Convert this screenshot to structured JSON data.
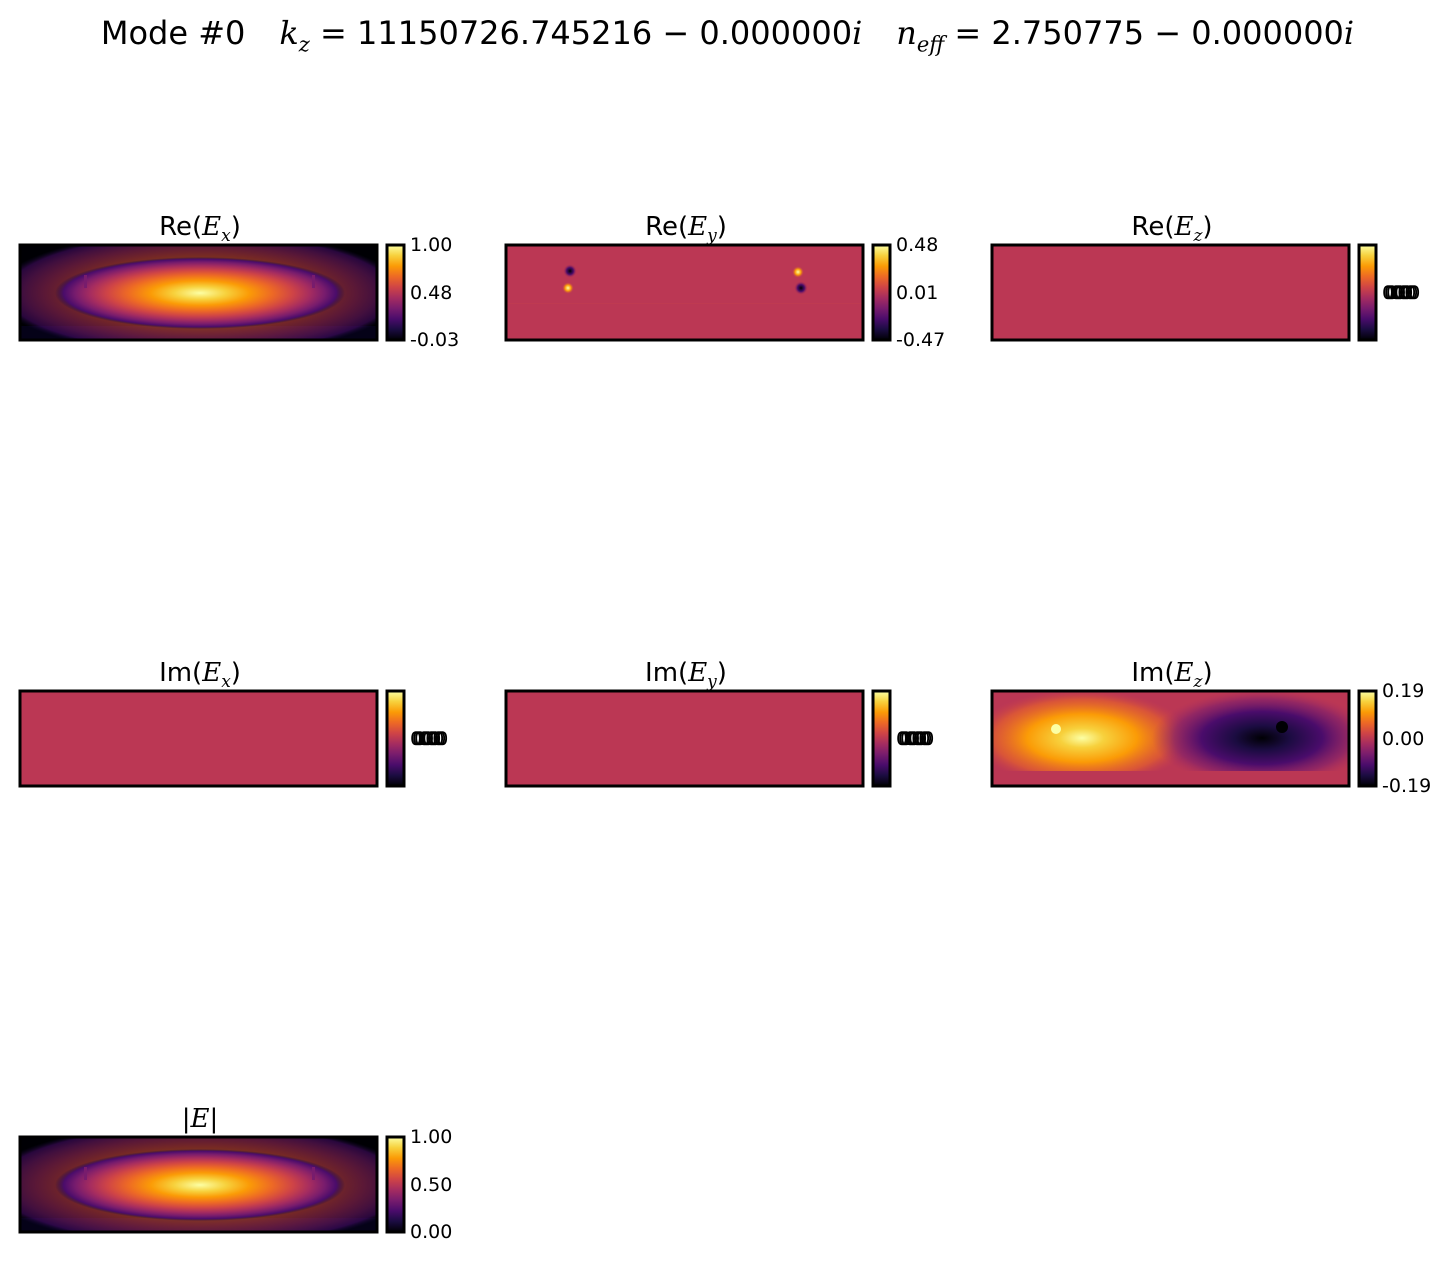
{
  "title": {
    "mode": "Mode #0",
    "kz_value": "11150726.745216 − 0.000000",
    "neff_value": "2.750775 − 0.000000"
  },
  "chart_data": [
    {
      "type": "heatmap",
      "title": {
        "prefix": "Re(",
        "sym": "E",
        "sub": "x",
        "suffix": ")"
      },
      "colormap": "inferno",
      "colorbar_ticks": [
        "1.00",
        "0.48",
        "-0.03"
      ]
    },
    {
      "type": "heatmap",
      "title": {
        "prefix": "Re(",
        "sym": "E",
        "sub": "y",
        "suffix": ")"
      },
      "colormap": "inferno",
      "colorbar_ticks": [
        "0.48",
        "0.01",
        "-0.47"
      ]
    },
    {
      "type": "heatmap",
      "title": {
        "prefix": "Re(",
        "sym": "E",
        "sub": "z",
        "suffix": ")"
      },
      "colormap": "inferno",
      "colorbar_ticks": [
        "0.000"
      ],
      "uniform": true
    },
    {
      "type": "heatmap",
      "title": {
        "prefix": "Im(",
        "sym": "E",
        "sub": "x",
        "suffix": ")"
      },
      "colormap": "inferno",
      "colorbar_ticks": [
        "0.000"
      ],
      "uniform": true
    },
    {
      "type": "heatmap",
      "title": {
        "prefix": "Im(",
        "sym": "E",
        "sub": "y",
        "suffix": ")"
      },
      "colormap": "inferno",
      "colorbar_ticks": [
        "0.000"
      ],
      "uniform": true
    },
    {
      "type": "heatmap",
      "title": {
        "prefix": "Im(",
        "sym": "E",
        "sub": "z",
        "suffix": ")"
      },
      "colormap": "inferno",
      "colorbar_ticks": [
        "0.19",
        "0.00",
        "-0.19"
      ]
    },
    {
      "type": "heatmap",
      "title": {
        "prefix": "|",
        "sym": "E",
        "sub": "",
        "suffix": "|"
      },
      "colormap": "inferno",
      "colorbar_ticks": [
        "1.00",
        "0.50",
        "0.00"
      ]
    }
  ],
  "colors": {
    "uniform_field": "#bb3754",
    "frame": "#000000",
    "inferno_stops": [
      "#000004",
      "#1b0c41",
      "#4a0c6b",
      "#781c6d",
      "#a52c60",
      "#cf4446",
      "#ed6925",
      "#fb9b06",
      "#f7d13d",
      "#fcffa4"
    ]
  }
}
